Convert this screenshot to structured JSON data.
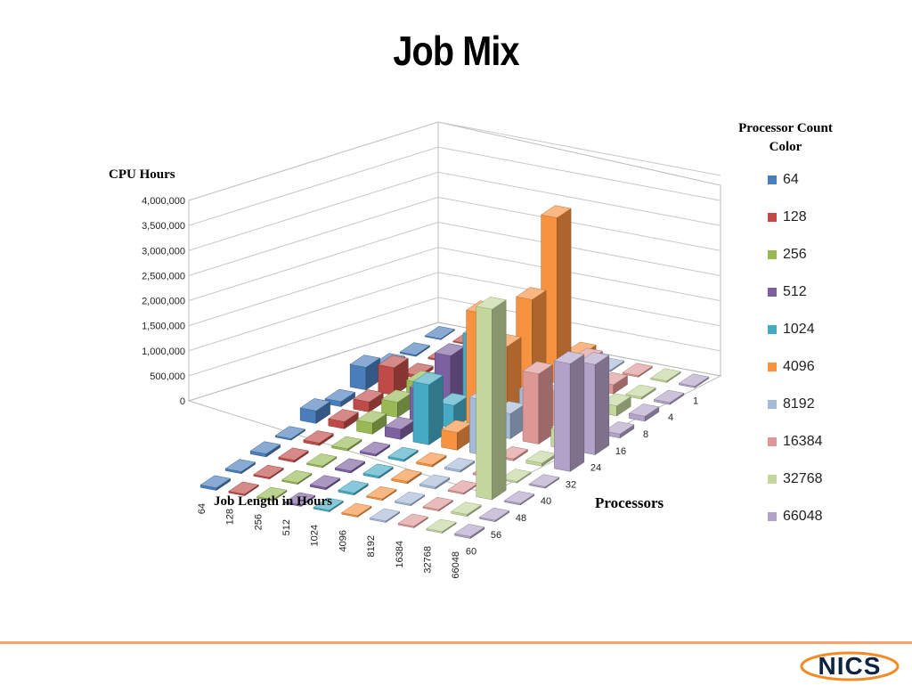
{
  "slide": {
    "title": "Job Mix"
  },
  "brand": {
    "logo_text": "NICS",
    "footer_color": "#f5a471"
  },
  "chart_data": {
    "type": "bar",
    "subtype": "3d-column",
    "title": "",
    "zlabel": "CPU Hours",
    "xlabel": "Job Length in Hours",
    "ylabel": "Processors",
    "zlim": [
      0,
      4000000
    ],
    "z_ticks": [
      "0",
      "500,000",
      "1,000,000",
      "1,500,000",
      "2,000,000",
      "2,500,000",
      "3,000,000",
      "3,500,000",
      "4,000,000"
    ],
    "grid": true,
    "legend_title": "Processor Count Color",
    "legend_position": "right",
    "job_lengths": [
      "1",
      "4",
      "8",
      "16",
      "24",
      "32",
      "40",
      "48",
      "56",
      "60"
    ],
    "processors": [
      "64",
      "128",
      "256",
      "512",
      "1024",
      "4096",
      "8192",
      "16384",
      "32768",
      "66048"
    ],
    "series": [
      {
        "name": "64",
        "color": "#4a7ebb",
        "values": [
          20000,
          30000,
          150000,
          450000,
          100000,
          250000,
          30000,
          60000,
          40000,
          50000
        ]
      },
      {
        "name": "128",
        "color": "#be4b48",
        "values": [
          20000,
          30000,
          60000,
          550000,
          200000,
          140000,
          50000,
          40000,
          30000,
          30000
        ]
      },
      {
        "name": "256",
        "color": "#98b954",
        "values": [
          20000,
          30000,
          140000,
          350000,
          300000,
          220000,
          40000,
          30000,
          30000,
          30000
        ]
      },
      {
        "name": "512",
        "color": "#7d60a0",
        "values": [
          250000,
          230000,
          200000,
          1000000,
          650000,
          200000,
          40000,
          40000,
          40000,
          30000
        ]
      },
      {
        "name": "1024",
        "color": "#46aac5",
        "values": [
          20000,
          200000,
          200000,
          1500000,
          450000,
          1200000,
          40000,
          40000,
          40000,
          30000
        ]
      },
      {
        "name": "4096",
        "color": "#f69240",
        "values": [
          240000,
          3300000,
          2000000,
          1400000,
          2400000,
          350000,
          40000,
          40000,
          30000,
          30000
        ]
      },
      {
        "name": "8192",
        "color": "#a5b9d9",
        "values": [
          30000,
          100000,
          150000,
          600000,
          500000,
          1100000,
          40000,
          40000,
          30000,
          30000
        ]
      },
      {
        "name": "16384",
        "color": "#dd9795",
        "values": [
          30000,
          180000,
          1000000,
          700000,
          1400000,
          40000,
          30000,
          30000,
          30000,
          30000
        ]
      },
      {
        "name": "32768",
        "color": "#c3d69b",
        "values": [
          30000,
          40000,
          200000,
          60000,
          350000,
          60000,
          30000,
          3800000,
          40000,
          30000
        ]
      },
      {
        "name": "66048",
        "color": "#b2a2c7",
        "values": [
          30000,
          40000,
          100000,
          80000,
          1800000,
          2150000,
          30000,
          30000,
          30000,
          40000
        ]
      }
    ]
  }
}
